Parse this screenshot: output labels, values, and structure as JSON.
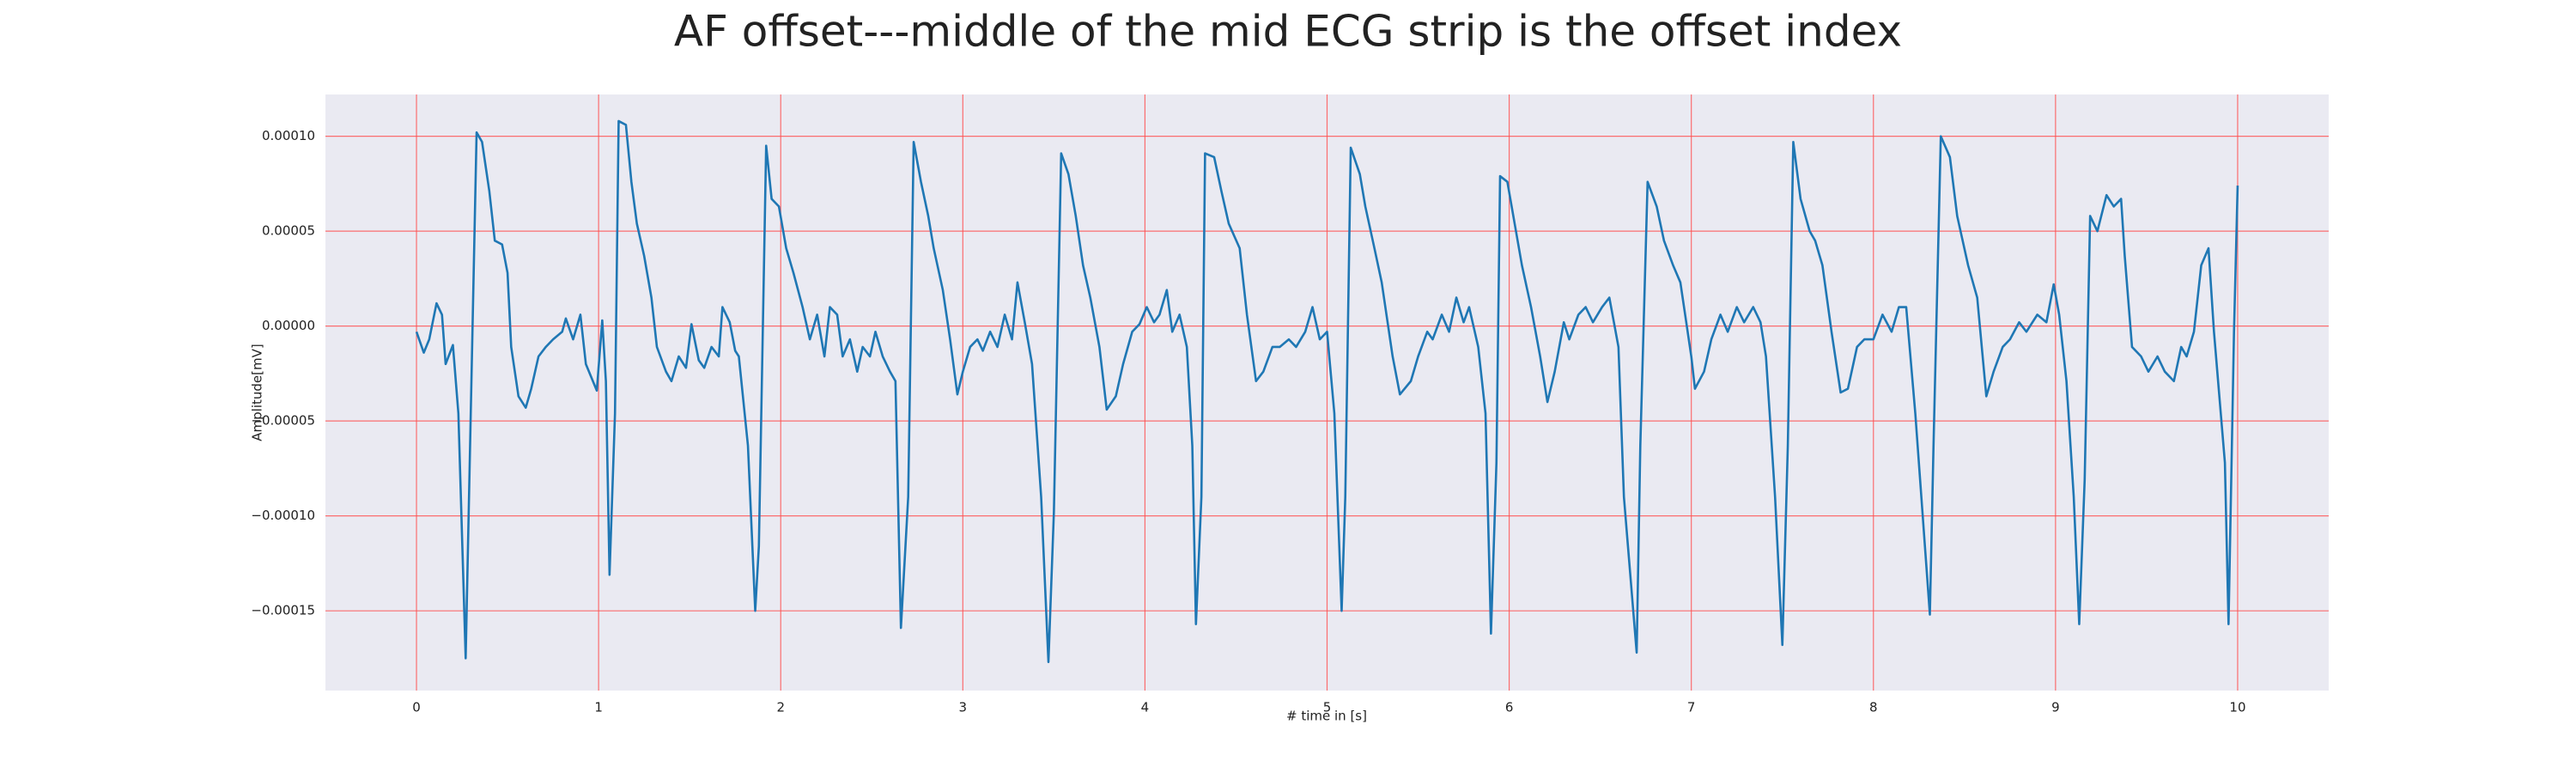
{
  "chart_data": {
    "type": "line",
    "title": "AF offset---middle of the mid ECG strip is the offset index",
    "x_label": "# time in [s]",
    "y_label": "Amplitude[mV]",
    "grid": true,
    "grid_color": "#ff4d4d",
    "background": "#eaeaf2",
    "xlim": [
      -0.5,
      10.5
    ],
    "ylim": [
      -0.000192,
      0.000122
    ],
    "xticks": [
      0,
      1,
      2,
      3,
      4,
      5,
      6,
      7,
      8,
      9,
      10
    ],
    "yticks": [
      {
        "value": 0.0001,
        "label": "0.00010"
      },
      {
        "value": 5e-05,
        "label": "0.00005"
      },
      {
        "value": 0,
        "label": "0.00000"
      },
      {
        "value": -5e-05,
        "label": "−0.00005"
      },
      {
        "value": -0.0001,
        "label": "−0.00010"
      },
      {
        "value": -0.00015,
        "label": "−0.00015"
      }
    ],
    "x": [
      0.0,
      0.04,
      0.07,
      0.11,
      0.14,
      0.16,
      0.2,
      0.23,
      0.27,
      0.33,
      0.36,
      0.4,
      0.43,
      0.47,
      0.5,
      0.52,
      0.56,
      0.6,
      0.63,
      0.67,
      0.71,
      0.75,
      0.8,
      0.82,
      0.86,
      0.9,
      0.93,
      0.99,
      1.02,
      1.04,
      1.06,
      1.09,
      1.11,
      1.15,
      1.18,
      1.21,
      1.25,
      1.29,
      1.32,
      1.37,
      1.4,
      1.44,
      1.48,
      1.51,
      1.55,
      1.58,
      1.62,
      1.66,
      1.68,
      1.72,
      1.75,
      1.77,
      1.82,
      1.86,
      1.88,
      1.92,
      1.95,
      1.99,
      2.03,
      2.07,
      2.12,
      2.16,
      2.2,
      2.24,
      2.27,
      2.31,
      2.34,
      2.38,
      2.42,
      2.45,
      2.49,
      2.52,
      2.56,
      2.6,
      2.63,
      2.66,
      2.7,
      2.73,
      2.77,
      2.81,
      2.84,
      2.89,
      2.93,
      2.97,
      3.0,
      3.04,
      3.08,
      3.11,
      3.15,
      3.19,
      3.23,
      3.27,
      3.3,
      3.34,
      3.38,
      3.43,
      3.47,
      3.5,
      3.54,
      3.58,
      3.62,
      3.66,
      3.7,
      3.75,
      3.79,
      3.84,
      3.88,
      3.93,
      3.97,
      4.01,
      4.05,
      4.08,
      4.12,
      4.15,
      4.19,
      4.23,
      4.26,
      4.28,
      4.31,
      4.33,
      4.38,
      4.42,
      4.46,
      4.52,
      4.56,
      4.61,
      4.65,
      4.7,
      4.74,
      4.79,
      4.83,
      4.88,
      4.92,
      4.96,
      5.0,
      5.04,
      5.08,
      5.1,
      5.13,
      5.18,
      5.21,
      5.26,
      5.3,
      5.36,
      5.4,
      5.46,
      5.5,
      5.55,
      5.58,
      5.63,
      5.67,
      5.71,
      5.75,
      5.78,
      5.83,
      5.87,
      5.9,
      5.93,
      5.95,
      5.99,
      6.03,
      6.07,
      6.12,
      6.17,
      6.21,
      6.25,
      6.3,
      6.33,
      6.38,
      6.42,
      6.46,
      6.51,
      6.55,
      6.6,
      6.63,
      6.7,
      6.72,
      6.76,
      6.81,
      6.85,
      6.9,
      6.94,
      7.0,
      7.02,
      7.07,
      7.11,
      7.16,
      7.2,
      7.25,
      7.29,
      7.34,
      7.38,
      7.41,
      7.46,
      7.5,
      7.53,
      7.56,
      7.6,
      7.65,
      7.68,
      7.72,
      7.77,
      7.82,
      7.86,
      7.91,
      7.95,
      8.0,
      8.05,
      8.1,
      8.14,
      8.18,
      8.23,
      8.31,
      8.33,
      8.37,
      8.42,
      8.46,
      8.52,
      8.57,
      8.62,
      8.66,
      8.71,
      8.75,
      8.8,
      8.84,
      8.9,
      8.95,
      8.99,
      9.02,
      9.06,
      9.1,
      9.13,
      9.16,
      9.19,
      9.23,
      9.28,
      9.32,
      9.36,
      9.38,
      9.42,
      9.47,
      9.51,
      9.56,
      9.6,
      9.65,
      9.69,
      9.72,
      9.76,
      9.8,
      9.84,
      9.87,
      9.93,
      9.95,
      9.98,
      10.0
    ],
    "series": [
      {
        "color": "#1f77b4",
        "values": [
          -3e-06,
          -1.4e-05,
          -7e-06,
          1.2e-05,
          6e-06,
          -2e-05,
          -1e-05,
          -4.6e-05,
          -0.000175,
          0.000102,
          9.7e-05,
          7.1e-05,
          4.5e-05,
          4.3e-05,
          2.8e-05,
          -1.1e-05,
          -3.7e-05,
          -4.3e-05,
          -3.3e-05,
          -1.6e-05,
          -1.1e-05,
          -7e-06,
          -3e-06,
          4e-06,
          -7e-06,
          6e-06,
          -2e-05,
          -3.4e-05,
          3e-06,
          -2.9e-05,
          -0.000131,
          -4.6e-05,
          0.000108,
          0.000106,
          7.6e-05,
          5.4e-05,
          3.7e-05,
          1.5e-05,
          -1.1e-05,
          -2.4e-05,
          -2.9e-05,
          -1.6e-05,
          -2.2e-05,
          1e-06,
          -1.8e-05,
          -2.2e-05,
          -1.1e-05,
          -1.6e-05,
          1e-05,
          2e-06,
          -1.3e-05,
          -1.6e-05,
          -6.3e-05,
          -0.00015,
          -0.000116,
          9.5e-05,
          6.7e-05,
          6.3e-05,
          4.1e-05,
          2.8e-05,
          1e-05,
          -7e-06,
          6e-06,
          -1.6e-05,
          1e-05,
          6e-06,
          -1.6e-05,
          -7e-06,
          -2.4e-05,
          -1.1e-05,
          -1.6e-05,
          -3e-06,
          -1.6e-05,
          -2.4e-05,
          -2.9e-05,
          -0.000159,
          -9e-05,
          9.7e-05,
          7.6e-05,
          5.8e-05,
          4.1e-05,
          1.9e-05,
          -7e-06,
          -3.6e-05,
          -2.4e-05,
          -1.1e-05,
          -7e-06,
          -1.3e-05,
          -3e-06,
          -1.1e-05,
          6e-06,
          -7e-06,
          2.3e-05,
          2e-06,
          -2e-05,
          -9e-05,
          -0.000177,
          -9.8e-05,
          9.1e-05,
          8e-05,
          5.8e-05,
          3.2e-05,
          1.5e-05,
          -1.1e-05,
          -4.4e-05,
          -3.7e-05,
          -2e-05,
          -3e-06,
          1e-06,
          1e-05,
          2e-06,
          6e-06,
          1.9e-05,
          -3e-06,
          6e-06,
          -1.1e-05,
          -6.3e-05,
          -0.000157,
          -9e-05,
          9.1e-05,
          8.9e-05,
          7.1e-05,
          5.4e-05,
          4.1e-05,
          6e-06,
          -2.9e-05,
          -2.4e-05,
          -1.1e-05,
          -1.1e-05,
          -7e-06,
          -1.1e-05,
          -3e-06,
          1e-05,
          -7e-06,
          -3e-06,
          -4.6e-05,
          -0.00015,
          -9e-05,
          9.4e-05,
          8e-05,
          6.3e-05,
          4.1e-05,
          2.3e-05,
          -1.6e-05,
          -3.6e-05,
          -2.9e-05,
          -1.6e-05,
          -3e-06,
          -7e-06,
          6e-06,
          -3e-06,
          1.5e-05,
          2e-06,
          1e-05,
          -1.1e-05,
          -4.6e-05,
          -0.000162,
          -7.2e-05,
          7.9e-05,
          7.6e-05,
          5.4e-05,
          3.2e-05,
          1e-05,
          -1.6e-05,
          -4e-05,
          -2.4e-05,
          2e-06,
          -7e-06,
          6e-06,
          1e-05,
          2e-06,
          1e-05,
          1.5e-05,
          -1.1e-05,
          -9e-05,
          -0.000172,
          -6.3e-05,
          7.6e-05,
          6.3e-05,
          4.5e-05,
          3.2e-05,
          2.3e-05,
          -1.6e-05,
          -3.3e-05,
          -2.4e-05,
          -7e-06,
          6e-06,
          -3e-06,
          1e-05,
          2e-06,
          1e-05,
          2e-06,
          -1.6e-05,
          -9e-05,
          -0.000168,
          -6.3e-05,
          9.7e-05,
          6.7e-05,
          5e-05,
          4.5e-05,
          3.2e-05,
          -3e-06,
          -3.5e-05,
          -3.3e-05,
          -1.1e-05,
          -7e-06,
          -7e-06,
          6e-06,
          -3e-06,
          1e-05,
          1e-05,
          -4.6e-05,
          -0.000152,
          -6.3e-05,
          0.0001,
          8.9e-05,
          5.8e-05,
          3.2e-05,
          1.5e-05,
          -3.7e-05,
          -2.4e-05,
          -1.1e-05,
          -7e-06,
          2e-06,
          -3e-06,
          6e-06,
          2e-06,
          2.2e-05,
          6e-06,
          -2.9e-05,
          -9e-05,
          -0.000157,
          -8.1e-05,
          5.8e-05,
          5e-05,
          6.9e-05,
          6.3e-05,
          6.7e-05,
          3.7e-05,
          -1.1e-05,
          -1.6e-05,
          -2.4e-05,
          -1.6e-05,
          -2.4e-05,
          -2.9e-05,
          -1.1e-05,
          -1.6e-05,
          -3e-06,
          3.2e-05,
          4.1e-05,
          -3e-06,
          -7.2e-05,
          -0.000157,
          -3e-06,
          7.4e-05
        ]
      }
    ]
  }
}
